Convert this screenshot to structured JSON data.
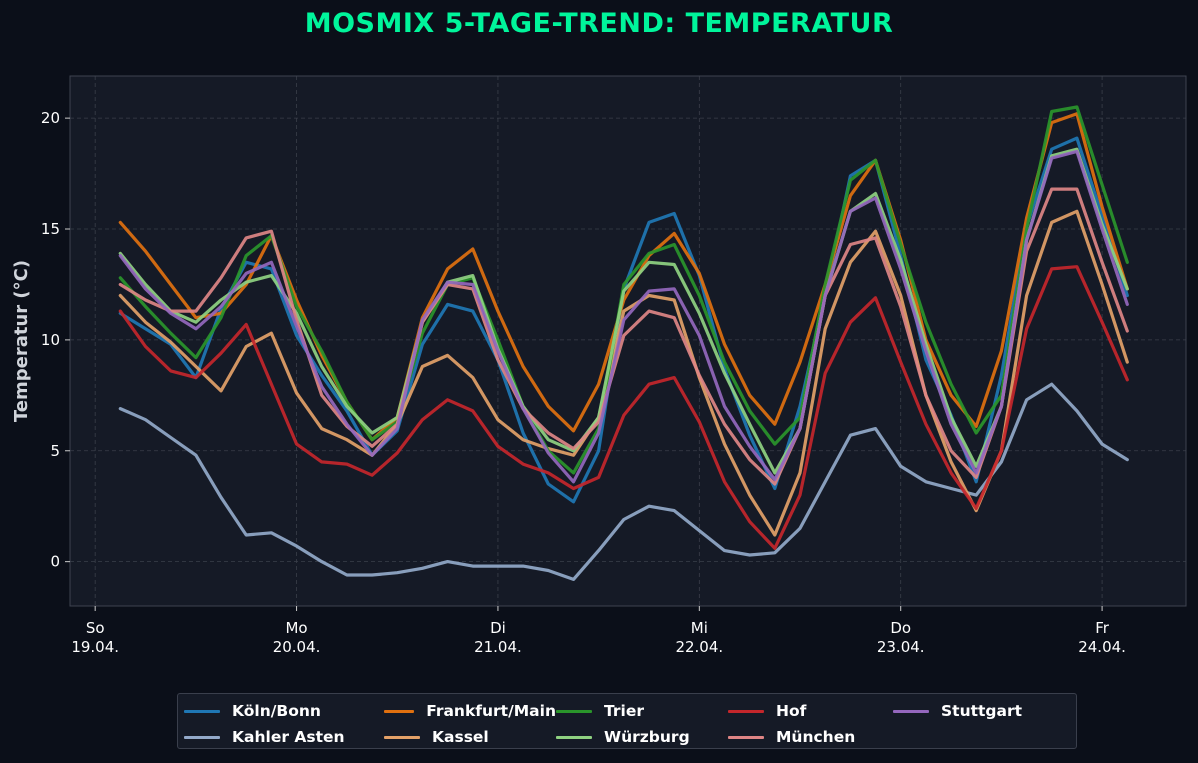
{
  "chart_data": {
    "type": "line",
    "title": "MOSMIX 5-TAGE-TREND: TEMPERATUR",
    "ylabel": "Temperatur (°C)",
    "xlabel": "",
    "ylim": [
      -2,
      21.9
    ],
    "yticks": [
      0,
      5,
      10,
      15,
      20
    ],
    "grid": true,
    "legend_placement": "bottom-center",
    "x_ticks": [
      {
        "day": "So",
        "date": "19.04."
      },
      {
        "day": "Mo",
        "date": "20.04."
      },
      {
        "day": "Di",
        "date": "21.04."
      },
      {
        "day": "Mi",
        "date": "22.04."
      },
      {
        "day": "Do",
        "date": "23.04."
      },
      {
        "day": "Fr",
        "date": "24.04."
      }
    ],
    "x": [
      "19.04. 03:00",
      "19.04. 06:00",
      "19.04. 09:00",
      "19.04. 12:00",
      "19.04. 15:00",
      "19.04. 18:00",
      "19.04. 21:00",
      "20.04. 00:00",
      "20.04. 03:00",
      "20.04. 06:00",
      "20.04. 09:00",
      "20.04. 12:00",
      "20.04. 15:00",
      "20.04. 18:00",
      "20.04. 21:00",
      "21.04. 00:00",
      "21.04. 03:00",
      "21.04. 06:00",
      "21.04. 09:00",
      "21.04. 12:00",
      "21.04. 15:00",
      "21.04. 18:00",
      "21.04. 21:00",
      "22.04. 00:00",
      "22.04. 03:00",
      "22.04. 06:00",
      "22.04. 09:00",
      "22.04. 12:00",
      "22.04. 15:00",
      "22.04. 18:00",
      "22.04. 21:00",
      "23.04. 00:00",
      "23.04. 03:00",
      "23.04. 06:00",
      "23.04. 09:00",
      "23.04. 12:00",
      "23.04. 15:00",
      "23.04. 18:00",
      "23.04. 21:00",
      "24.04. 00:00",
      "24.04. 03:00"
    ],
    "series": [
      {
        "name": "Köln/Bonn",
        "color": "#1f77b4",
        "values": [
          11.2,
          10.5,
          9.8,
          8.3,
          11.4,
          13.5,
          13.2,
          10.2,
          8.4,
          6.8,
          4.8,
          5.9,
          9.8,
          11.6,
          11.3,
          9.1,
          5.8,
          3.5,
          2.7,
          5.0,
          12.3,
          15.3,
          15.7,
          12.9,
          8.7,
          5.7,
          3.3,
          7.0,
          12.0,
          17.4,
          18.1,
          13.8,
          9.1,
          6.6,
          3.6,
          8.4,
          15.1,
          18.6,
          19.1,
          15.6,
          12.0
        ]
      },
      {
        "name": "Kahler Asten",
        "color": "#93a9c9",
        "values": [
          6.9,
          6.4,
          5.6,
          4.8,
          2.9,
          1.2,
          1.3,
          0.7,
          0.0,
          -0.6,
          -0.6,
          -0.5,
          -0.3,
          0.0,
          -0.2,
          -0.2,
          -0.2,
          -0.4,
          -0.8,
          0.5,
          1.9,
          2.5,
          2.3,
          1.4,
          0.5,
          0.3,
          0.4,
          1.5,
          3.6,
          5.7,
          6.0,
          4.3,
          3.6,
          3.3,
          3.0,
          4.5,
          7.3,
          8.0,
          6.8,
          5.3,
          4.6
        ]
      },
      {
        "name": "Frankfurt/Main",
        "color": "#e0700f",
        "values": [
          15.3,
          14.0,
          12.5,
          11.0,
          11.2,
          12.5,
          14.7,
          11.8,
          9.3,
          7.2,
          5.5,
          6.5,
          11.0,
          13.2,
          14.1,
          11.3,
          8.8,
          7.0,
          5.9,
          8.0,
          11.8,
          13.8,
          14.8,
          13.0,
          9.8,
          7.5,
          6.2,
          9.0,
          12.5,
          16.5,
          18.1,
          14.5,
          10.0,
          7.5,
          6.1,
          9.5,
          15.5,
          19.8,
          20.2,
          16.0,
          12.3
        ]
      },
      {
        "name": "Kassel",
        "color": "#e3a168",
        "values": [
          12.0,
          10.8,
          9.9,
          8.8,
          7.7,
          9.7,
          10.3,
          7.6,
          6.0,
          5.5,
          4.8,
          6.2,
          8.8,
          9.3,
          8.3,
          6.4,
          5.5,
          5.1,
          4.8,
          6.5,
          11.3,
          12.0,
          11.8,
          8.3,
          5.3,
          3.0,
          1.2,
          4.0,
          10.5,
          13.5,
          14.9,
          12.0,
          7.5,
          4.5,
          2.3,
          5.0,
          12.0,
          15.3,
          15.8,
          12.5,
          9.0
        ]
      },
      {
        "name": "Trier",
        "color": "#2a952b",
        "values": [
          12.8,
          11.5,
          10.3,
          9.2,
          11.0,
          13.8,
          14.7,
          11.5,
          9.5,
          7.2,
          5.5,
          6.3,
          10.3,
          12.5,
          12.8,
          10.0,
          7.0,
          5.0,
          4.0,
          6.0,
          12.5,
          13.9,
          14.3,
          12.0,
          9.0,
          6.8,
          5.3,
          6.5,
          12.5,
          17.2,
          18.1,
          14.3,
          10.8,
          8.0,
          5.8,
          7.5,
          15.0,
          20.3,
          20.5,
          17.0,
          13.5
        ]
      },
      {
        "name": "Würzburg",
        "color": "#8fd181",
        "values": [
          13.9,
          12.5,
          11.3,
          10.8,
          11.8,
          12.6,
          12.9,
          11.2,
          8.8,
          7.0,
          5.8,
          6.5,
          10.8,
          12.6,
          12.9,
          9.6,
          7.0,
          5.5,
          5.0,
          6.5,
          12.2,
          13.5,
          13.4,
          11.2,
          8.5,
          6.2,
          4.0,
          6.0,
          12.0,
          15.8,
          16.6,
          13.6,
          9.8,
          6.5,
          4.3,
          7.0,
          14.5,
          18.3,
          18.6,
          15.2,
          12.3
        ]
      },
      {
        "name": "Hof",
        "color": "#c4262b",
        "values": [
          11.3,
          9.7,
          8.6,
          8.3,
          9.4,
          10.7,
          8.0,
          5.3,
          4.5,
          4.4,
          3.9,
          4.9,
          6.4,
          7.3,
          6.8,
          5.2,
          4.4,
          4.0,
          3.3,
          3.8,
          6.6,
          8.0,
          8.3,
          6.3,
          3.6,
          1.8,
          0.6,
          3.0,
          8.5,
          10.8,
          11.9,
          9.0,
          6.2,
          4.0,
          2.4,
          5.0,
          10.5,
          13.2,
          13.3,
          10.8,
          8.2
        ]
      },
      {
        "name": "München",
        "color": "#de8585",
        "values": [
          12.5,
          11.8,
          11.3,
          11.3,
          12.8,
          14.6,
          14.9,
          10.9,
          7.5,
          6.1,
          5.2,
          6.2,
          10.8,
          12.5,
          12.3,
          9.1,
          6.9,
          5.8,
          5.1,
          6.3,
          10.2,
          11.3,
          11.0,
          8.4,
          6.2,
          4.6,
          3.5,
          6.0,
          12.0,
          14.3,
          14.6,
          11.5,
          7.5,
          5.0,
          3.8,
          7.0,
          14.0,
          16.8,
          16.8,
          13.5,
          10.4
        ]
      },
      {
        "name": "Stuttgart",
        "color": "#9467bd",
        "values": [
          13.8,
          12.3,
          11.2,
          10.5,
          11.5,
          13.0,
          13.5,
          10.6,
          7.9,
          6.2,
          4.8,
          6.0,
          10.9,
          12.6,
          12.5,
          9.5,
          6.9,
          4.9,
          3.6,
          5.8,
          10.9,
          12.2,
          12.3,
          10.2,
          7.0,
          5.2,
          3.7,
          6.0,
          12.0,
          15.8,
          16.4,
          13.2,
          9.5,
          6.2,
          4.0,
          7.0,
          14.5,
          18.2,
          18.5,
          15.0,
          11.6
        ]
      }
    ],
    "legend_order": [
      0,
      2,
      4,
      6,
      8,
      1,
      3,
      5,
      7
    ]
  },
  "colors": {
    "background": "#0b0f19",
    "plot_background": "#151a26",
    "title": "#00f59b",
    "text": "#ffffff",
    "grid": "#3a3f4a"
  }
}
